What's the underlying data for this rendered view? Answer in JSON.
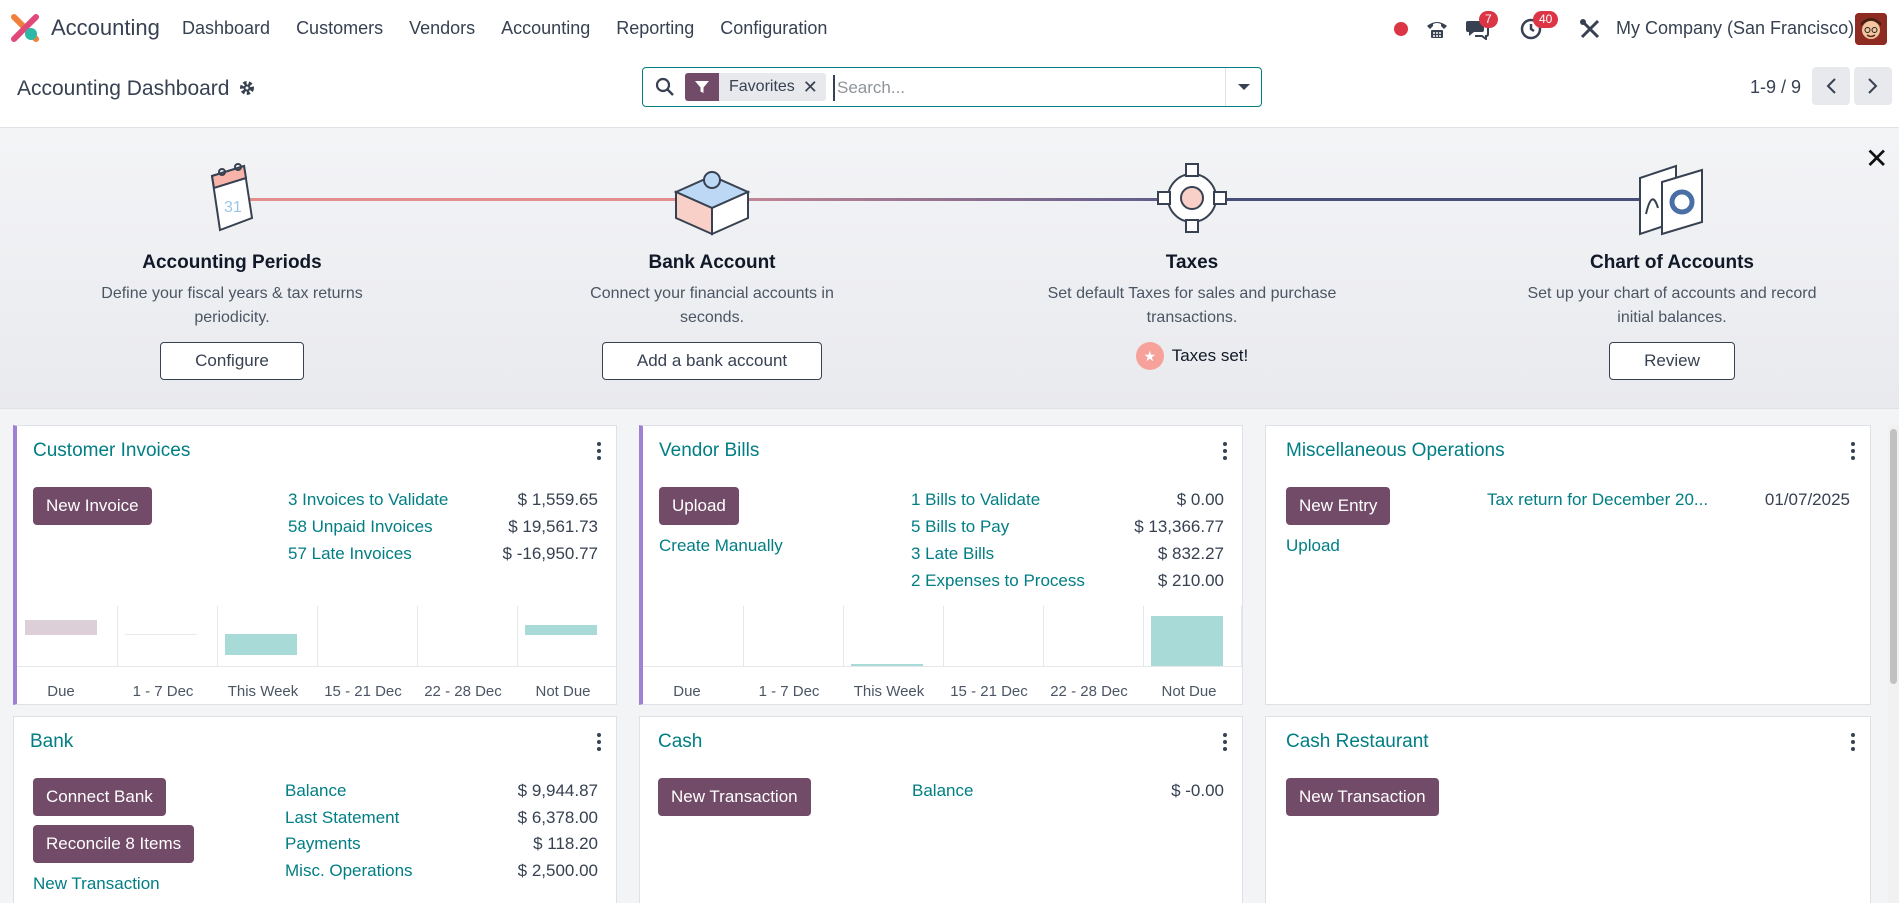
{
  "navbar": {
    "app_name": "Accounting",
    "menu": [
      "Dashboard",
      "Customers",
      "Vendors",
      "Accounting",
      "Reporting",
      "Configuration"
    ],
    "chat_badge": "7",
    "activity_badge": "40",
    "company": "My Company (San Francisco)"
  },
  "control": {
    "title": "Accounting Dashboard",
    "facet_label": "Favorites",
    "search_placeholder": "Search...",
    "pager": "1-9 / 9"
  },
  "onboarding": {
    "steps": [
      {
        "title": "Accounting Periods",
        "desc_line1": "Define your fiscal years & tax returns",
        "desc_line2": "periodicity.",
        "button": "Configure"
      },
      {
        "title": "Bank Account",
        "desc_line1": "Connect your financial accounts in",
        "desc_line2": "seconds.",
        "button": "Add a bank account"
      },
      {
        "title": "Taxes",
        "desc_line1": "Set default Taxes for sales and purchase",
        "desc_line2": "transactions.",
        "done_label": "Taxes set!"
      },
      {
        "title": "Chart of Accounts",
        "desc_line1": "Set up your chart of accounts and record",
        "desc_line2": "initial balances.",
        "button": "Review"
      }
    ]
  },
  "cards": {
    "customer_invoices": {
      "title": "Customer Invoices",
      "button": "New Invoice",
      "rows": [
        {
          "label": "3 Invoices to Validate",
          "amount": "$ 1,559.65"
        },
        {
          "label": "58 Unpaid Invoices",
          "amount": "$ 19,561.73"
        },
        {
          "label": "57 Late Invoices",
          "amount": "$ -16,950.77"
        }
      ],
      "chart_ticks": [
        "Due",
        "1 - 7 Dec",
        "This Week",
        "15 - 21 Dec",
        "22 - 28 Dec",
        "Not Due"
      ]
    },
    "vendor_bills": {
      "title": "Vendor Bills",
      "button": "Upload",
      "link": "Create Manually",
      "rows": [
        {
          "label": "1 Bills to Validate",
          "amount": "$ 0.00"
        },
        {
          "label": "5 Bills to Pay",
          "amount": "$ 13,366.77"
        },
        {
          "label": "3 Late Bills",
          "amount": "$ 832.27"
        },
        {
          "label": "2 Expenses to Process",
          "amount": "$ 210.00"
        }
      ],
      "chart_ticks": [
        "Due",
        "1 - 7 Dec",
        "This Week",
        "15 - 21 Dec",
        "22 - 28 Dec",
        "Not Due"
      ]
    },
    "misc_operations": {
      "title": "Miscellaneous Operations",
      "button": "New Entry",
      "link": "Upload",
      "entry_label": "Tax return for December 20...",
      "entry_date": "01/07/2025"
    },
    "bank": {
      "title": "Bank",
      "button1": "Connect Bank",
      "button2": "Reconcile 8 Items",
      "link": "New Transaction",
      "rows": [
        {
          "label": "Balance",
          "amount": "$ 9,944.87"
        },
        {
          "label": "Last Statement",
          "amount": "$ 6,378.00"
        },
        {
          "label": "Payments",
          "amount": "$ 118.20"
        },
        {
          "label": "Misc. Operations",
          "amount": "$ 2,500.00"
        }
      ]
    },
    "cash": {
      "title": "Cash",
      "button": "New Transaction",
      "rows": [
        {
          "label": "Balance",
          "amount": "$ -0.00"
        }
      ]
    },
    "cash_restaurant": {
      "title": "Cash Restaurant",
      "button": "New Transaction"
    }
  },
  "colors": {
    "brand": "#714b67",
    "link": "#017e84",
    "invoice_bar_due": "#dccfd8",
    "bar_teal": "#a8dad8"
  }
}
